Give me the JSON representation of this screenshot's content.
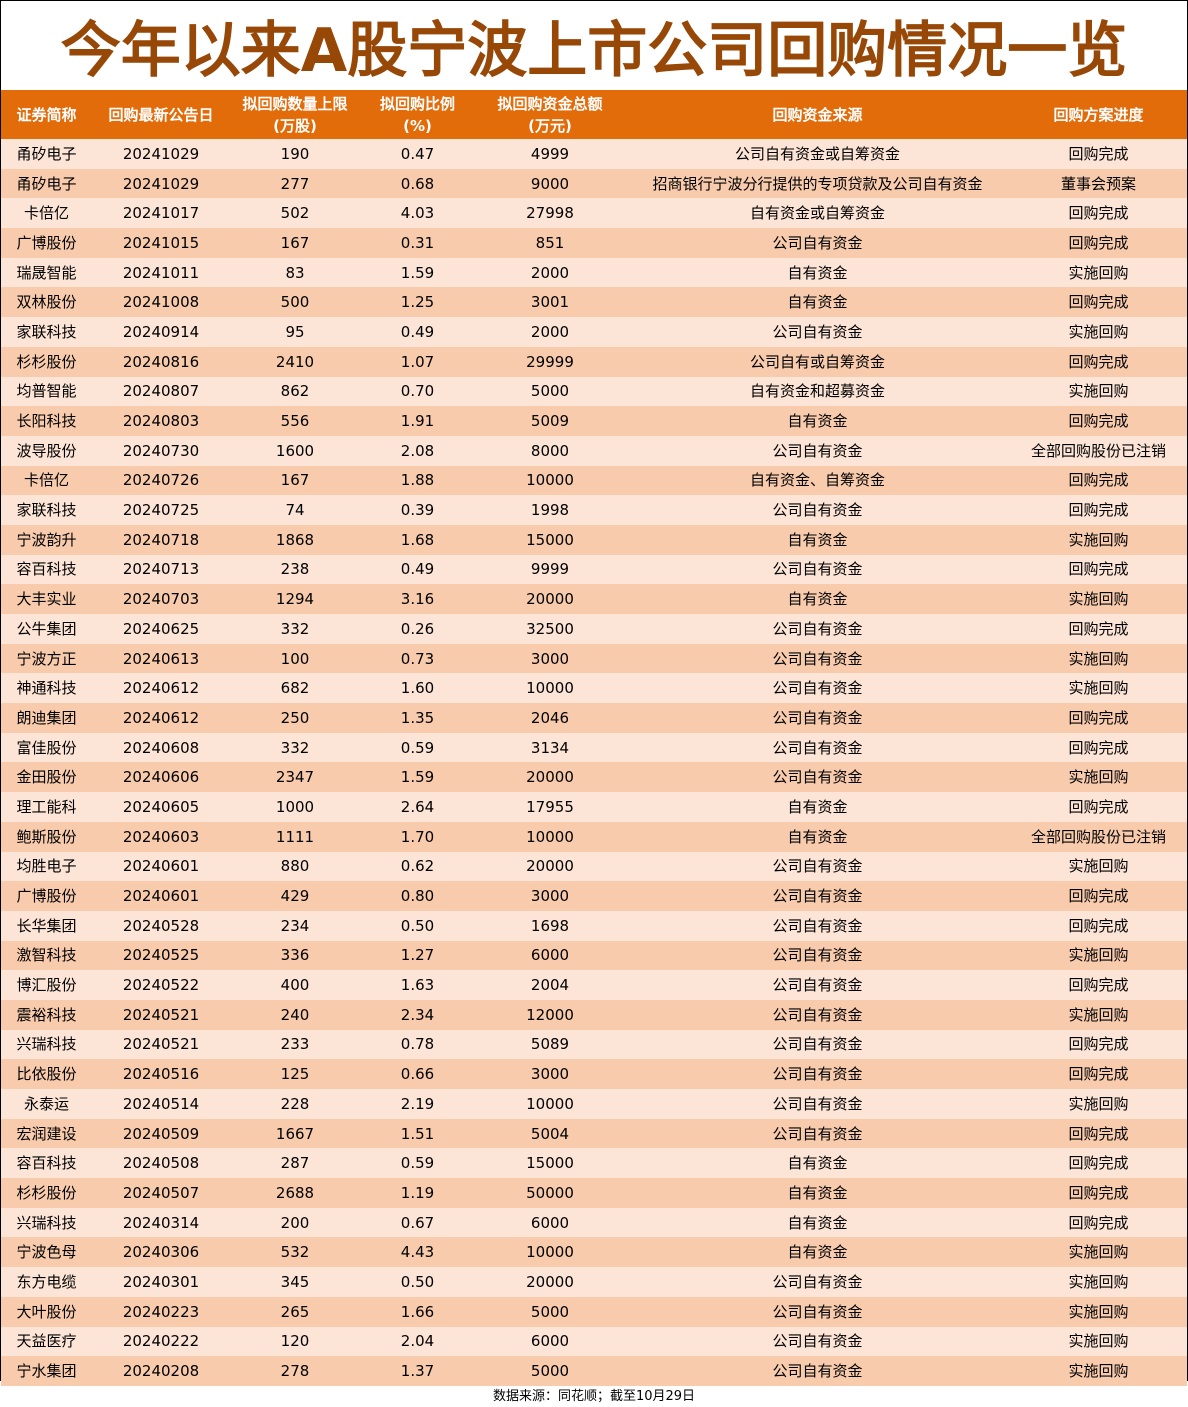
{
  "title": "今年以来A股宁波上市公司回购情况一览",
  "colors": {
    "title": "#974706",
    "header_bg": "#E26B0A",
    "row_light": "#FCE4D6",
    "row_dark": "#F8CBAD"
  },
  "columns": [
    {
      "line1": "证券简称",
      "line2": ""
    },
    {
      "line1": "回购最新公告日",
      "line2": ""
    },
    {
      "line1": "拟回购数量上限",
      "line2": "(万股)"
    },
    {
      "line1": "拟回购比例",
      "line2": "(%)"
    },
    {
      "line1": "拟回购资金总额",
      "line2": "(万元)"
    },
    {
      "line1": "回购资金来源",
      "line2": ""
    },
    {
      "line1": "回购方案进度",
      "line2": ""
    }
  ],
  "rows": [
    [
      "甬矽电子",
      "20241029",
      "190",
      "0.47",
      "4999",
      "公司自有资金或自筹资金",
      "回购完成"
    ],
    [
      "甬矽电子",
      "20241029",
      "277",
      "0.68",
      "9000",
      "招商银行宁波分行提供的专项贷款及公司自有资金",
      "董事会预案"
    ],
    [
      "卡倍亿",
      "20241017",
      "502",
      "4.03",
      "27998",
      "自有资金或自筹资金",
      "回购完成"
    ],
    [
      "广博股份",
      "20241015",
      "167",
      "0.31",
      "851",
      "公司自有资金",
      "回购完成"
    ],
    [
      "瑞晟智能",
      "20241011",
      "83",
      "1.59",
      "2000",
      "自有资金",
      "实施回购"
    ],
    [
      "双林股份",
      "20241008",
      "500",
      "1.25",
      "3001",
      "自有资金",
      "回购完成"
    ],
    [
      "家联科技",
      "20240914",
      "95",
      "0.49",
      "2000",
      "公司自有资金",
      "实施回购"
    ],
    [
      "杉杉股份",
      "20240816",
      "2410",
      "1.07",
      "29999",
      "公司自有或自筹资金",
      "回购完成"
    ],
    [
      "均普智能",
      "20240807",
      "862",
      "0.70",
      "5000",
      "自有资金和超募资金",
      "实施回购"
    ],
    [
      "长阳科技",
      "20240803",
      "556",
      "1.91",
      "5009",
      "自有资金",
      "回购完成"
    ],
    [
      "波导股份",
      "20240730",
      "1600",
      "2.08",
      "8000",
      "公司自有资金",
      "全部回购股份已注销"
    ],
    [
      "卡倍亿",
      "20240726",
      "167",
      "1.88",
      "10000",
      "自有资金、自筹资金",
      "回购完成"
    ],
    [
      "家联科技",
      "20240725",
      "74",
      "0.39",
      "1998",
      "公司自有资金",
      "回购完成"
    ],
    [
      "宁波韵升",
      "20240718",
      "1868",
      "1.68",
      "15000",
      "自有资金",
      "实施回购"
    ],
    [
      "容百科技",
      "20240713",
      "238",
      "0.49",
      "9999",
      "公司自有资金",
      "回购完成"
    ],
    [
      "大丰实业",
      "20240703",
      "1294",
      "3.16",
      "20000",
      "自有资金",
      "实施回购"
    ],
    [
      "公牛集团",
      "20240625",
      "332",
      "0.26",
      "32500",
      "公司自有资金",
      "回购完成"
    ],
    [
      "宁波方正",
      "20240613",
      "100",
      "0.73",
      "3000",
      "公司自有资金",
      "实施回购"
    ],
    [
      "神通科技",
      "20240612",
      "682",
      "1.60",
      "10000",
      "公司自有资金",
      "实施回购"
    ],
    [
      "朗迪集团",
      "20240612",
      "250",
      "1.35",
      "2046",
      "公司自有资金",
      "回购完成"
    ],
    [
      "富佳股份",
      "20240608",
      "332",
      "0.59",
      "3134",
      "公司自有资金",
      "回购完成"
    ],
    [
      "金田股份",
      "20240606",
      "2347",
      "1.59",
      "20000",
      "公司自有资金",
      "实施回购"
    ],
    [
      "理工能科",
      "20240605",
      "1000",
      "2.64",
      "17955",
      "自有资金",
      "回购完成"
    ],
    [
      "鲍斯股份",
      "20240603",
      "1111",
      "1.70",
      "10000",
      "自有资金",
      "全部回购股份已注销"
    ],
    [
      "均胜电子",
      "20240601",
      "880",
      "0.62",
      "20000",
      "公司自有资金",
      "实施回购"
    ],
    [
      "广博股份",
      "20240601",
      "429",
      "0.80",
      "3000",
      "公司自有资金",
      "回购完成"
    ],
    [
      "长华集团",
      "20240528",
      "234",
      "0.50",
      "1698",
      "公司自有资金",
      "回购完成"
    ],
    [
      "激智科技",
      "20240525",
      "336",
      "1.27",
      "6000",
      "公司自有资金",
      "实施回购"
    ],
    [
      "博汇股份",
      "20240522",
      "400",
      "1.63",
      "2004",
      "公司自有资金",
      "回购完成"
    ],
    [
      "震裕科技",
      "20240521",
      "240",
      "2.34",
      "12000",
      "公司自有资金",
      "实施回购"
    ],
    [
      "兴瑞科技",
      "20240521",
      "233",
      "0.78",
      "5089",
      "公司自有资金",
      "回购完成"
    ],
    [
      "比依股份",
      "20240516",
      "125",
      "0.66",
      "3000",
      "公司自有资金",
      "回购完成"
    ],
    [
      "永泰运",
      "20240514",
      "228",
      "2.19",
      "10000",
      "公司自有资金",
      "实施回购"
    ],
    [
      "宏润建设",
      "20240509",
      "1667",
      "1.51",
      "5004",
      "公司自有资金",
      "回购完成"
    ],
    [
      "容百科技",
      "20240508",
      "287",
      "0.59",
      "15000",
      "自有资金",
      "回购完成"
    ],
    [
      "杉杉股份",
      "20240507",
      "2688",
      "1.19",
      "50000",
      "自有资金",
      "回购完成"
    ],
    [
      "兴瑞科技",
      "20240314",
      "200",
      "0.67",
      "6000",
      "自有资金",
      "回购完成"
    ],
    [
      "宁波色母",
      "20240306",
      "532",
      "4.43",
      "10000",
      "自有资金",
      "实施回购"
    ],
    [
      "东方电缆",
      "20240301",
      "345",
      "0.50",
      "20000",
      "公司自有资金",
      "实施回购"
    ],
    [
      "大叶股份",
      "20240223",
      "265",
      "1.66",
      "5000",
      "公司自有资金",
      "实施回购"
    ],
    [
      "天益医疗",
      "20240222",
      "120",
      "2.04",
      "6000",
      "公司自有资金",
      "实施回购"
    ],
    [
      "宁水集团",
      "20240208",
      "278",
      "1.37",
      "5000",
      "公司自有资金",
      "实施回购"
    ]
  ],
  "footer": "数据来源：同花顺；截至10月29日"
}
